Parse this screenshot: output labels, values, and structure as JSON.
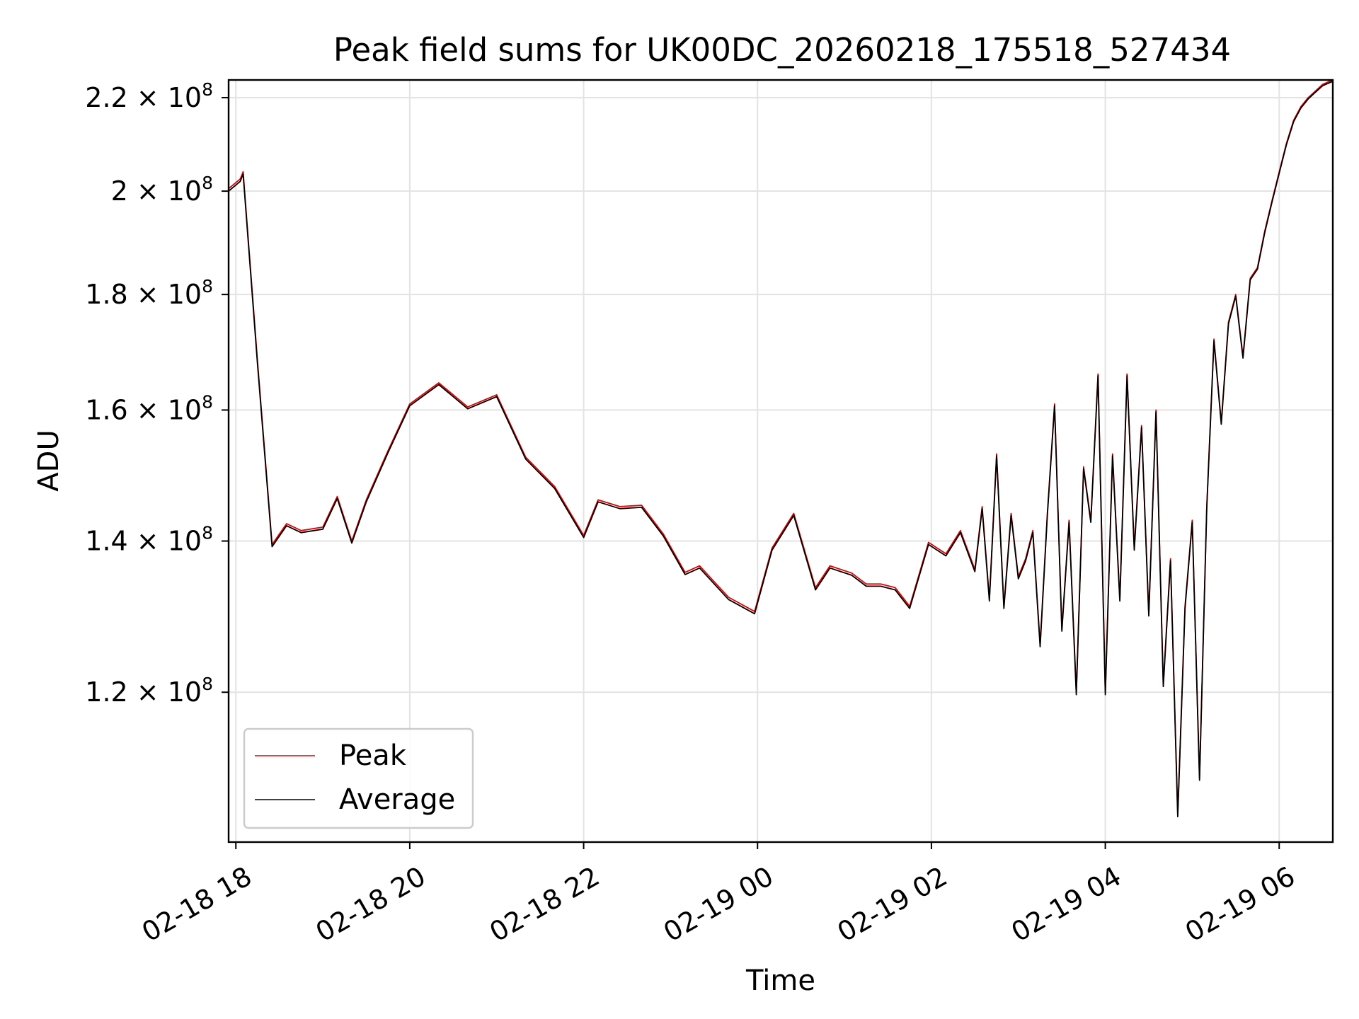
{
  "chart_data": {
    "type": "line",
    "title": "Peak field sums for UK00DC_20260218_175518_527434",
    "xlabel": "Time",
    "ylabel": "ADU",
    "y_scale": "log",
    "ylim": [
      103000000,
      224000000
    ],
    "xlim": [
      "02-18 17:55",
      "02-19 06:37"
    ],
    "grid": true,
    "legend_position": "lower-left",
    "x_ticks": [
      {
        "t": "02-18 18:00",
        "label": "02-18 18"
      },
      {
        "t": "02-18 20:00",
        "label": "02-18 20"
      },
      {
        "t": "02-18 22:00",
        "label": "02-18 22"
      },
      {
        "t": "02-19 00:00",
        "label": "02-19 00"
      },
      {
        "t": "02-19 02:00",
        "label": "02-19 02"
      },
      {
        "t": "02-19 04:00",
        "label": "02-19 04"
      },
      {
        "t": "02-19 06:00",
        "label": "02-19 06"
      }
    ],
    "y_ticks": [
      {
        "value": 220000000,
        "mantissa": "2.2",
        "exponent": "8"
      },
      {
        "value": 200000000,
        "mantissa": "2",
        "exponent": "8"
      },
      {
        "value": 180000000,
        "mantissa": "1.8",
        "exponent": "8"
      },
      {
        "value": 160000000,
        "mantissa": "1.6",
        "exponent": "8"
      },
      {
        "value": 140000000,
        "mantissa": "1.4",
        "exponent": "8"
      },
      {
        "value": 120000000,
        "mantissa": "1.2",
        "exponent": "8"
      }
    ],
    "times_sign": "×",
    "tick_base": "10",
    "x": [
      "02-18 17:55",
      "02-18 18:03",
      "02-18 18:05",
      "02-18 18:15",
      "02-18 18:25",
      "02-18 18:35",
      "02-18 18:45",
      "02-18 19:00",
      "02-18 19:10",
      "02-18 19:20",
      "02-18 19:30",
      "02-18 19:45",
      "02-18 20:00",
      "02-18 20:20",
      "02-18 20:40",
      "02-18 21:00",
      "02-18 21:20",
      "02-18 21:40",
      "02-18 22:00",
      "02-18 22:10",
      "02-18 22:25",
      "02-18 22:40",
      "02-18 22:55",
      "02-18 23:10",
      "02-18 23:20",
      "02-18 23:40",
      "02-18 23:58",
      "02-19 00:10",
      "02-19 00:25",
      "02-19 00:40",
      "02-19 00:50",
      "02-19 01:05",
      "02-19 01:15",
      "02-19 01:25",
      "02-19 01:35",
      "02-19 01:45",
      "02-19 01:58",
      "02-19 02:10",
      "02-19 02:20",
      "02-19 02:30",
      "02-19 02:35",
      "02-19 02:40",
      "02-19 02:45",
      "02-19 02:50",
      "02-19 02:55",
      "02-19 03:00",
      "02-19 03:05",
      "02-19 03:10",
      "02-19 03:15",
      "02-19 03:20",
      "02-19 03:25",
      "02-19 03:30",
      "02-19 03:35",
      "02-19 03:40",
      "02-19 03:45",
      "02-19 03:50",
      "02-19 03:55",
      "02-19 04:00",
      "02-19 04:05",
      "02-19 04:10",
      "02-19 04:15",
      "02-19 04:20",
      "02-19 04:25",
      "02-19 04:30",
      "02-19 04:35",
      "02-19 04:40",
      "02-19 04:45",
      "02-19 04:50",
      "02-19 04:55",
      "02-19 05:00",
      "02-19 05:05",
      "02-19 05:10",
      "02-19 05:15",
      "02-19 05:20",
      "02-19 05:25",
      "02-19 05:30",
      "02-19 05:35",
      "02-19 05:40",
      "02-19 05:45",
      "02-19 05:50",
      "02-19 05:55",
      "02-19 06:00",
      "02-19 06:05",
      "02-19 06:10",
      "02-19 06:15",
      "02-19 06:20",
      "02-19 06:25",
      "02-19 06:30",
      "02-19 06:37"
    ],
    "series": [
      {
        "name": "Peak",
        "color": "#e00000",
        "values": [
          200500000,
          202500000,
          204000000,
          168000000,
          139500000,
          142500000,
          141500000,
          142000000,
          146500000,
          140000000,
          146000000,
          153500000,
          161000000,
          164500000,
          160500000,
          162500000,
          152500000,
          148000000,
          140800000,
          146000000,
          145000000,
          145200000,
          141000000,
          135600000,
          136500000,
          132200000,
          130300000,
          139000000,
          144000000,
          133500000,
          136500000,
          135500000,
          134000000,
          134000000,
          133500000,
          131000000,
          139800000,
          138200000,
          141500000,
          136000000,
          145000000,
          132000000,
          153000000,
          131000000,
          144000000,
          135000000,
          137500000,
          141500000,
          126000000,
          144000000,
          161000000,
          128000000,
          143000000,
          120000000,
          151000000,
          143000000,
          166000000,
          120000000,
          153000000,
          132000000,
          166000000,
          139000000,
          157500000,
          130000000,
          160000000,
          121000000,
          137500000,
          106000000,
          131000000,
          143000000,
          110000000,
          145000000,
          172000000,
          158000000,
          175000000,
          180000000,
          169000000,
          183000000,
          185000000,
          192000000,
          198000000,
          204000000,
          210000000,
          215000000,
          218000000,
          220000000,
          221500000,
          223000000,
          224000000
        ]
      },
      {
        "name": "Average",
        "color": "#000000",
        "values": [
          200000000,
          202000000,
          203500000,
          167500000,
          139200000,
          142200000,
          141200000,
          141700000,
          146200000,
          139700000,
          145700000,
          153200000,
          160700000,
          164200000,
          160200000,
          162200000,
          152200000,
          147700000,
          140500000,
          145700000,
          144700000,
          144900000,
          140700000,
          135300000,
          136200000,
          131900000,
          130000000,
          138700000,
          143700000,
          133200000,
          136200000,
          135200000,
          133700000,
          133700000,
          133200000,
          130700000,
          139500000,
          137900000,
          141200000,
          135700000,
          144700000,
          131700000,
          152700000,
          130700000,
          143700000,
          134700000,
          137200000,
          141200000,
          125700000,
          143700000,
          160700000,
          127700000,
          142700000,
          119700000,
          150700000,
          142700000,
          165700000,
          119700000,
          152700000,
          131700000,
          165700000,
          138700000,
          157200000,
          129700000,
          159700000,
          120700000,
          137200000,
          105700000,
          130700000,
          142700000,
          109700000,
          144700000,
          171700000,
          157700000,
          174700000,
          179700000,
          168700000,
          182700000,
          184700000,
          191700000,
          197700000,
          203700000,
          209700000,
          214700000,
          217700000,
          219700000,
          221200000,
          222700000,
          223700000
        ]
      }
    ]
  }
}
